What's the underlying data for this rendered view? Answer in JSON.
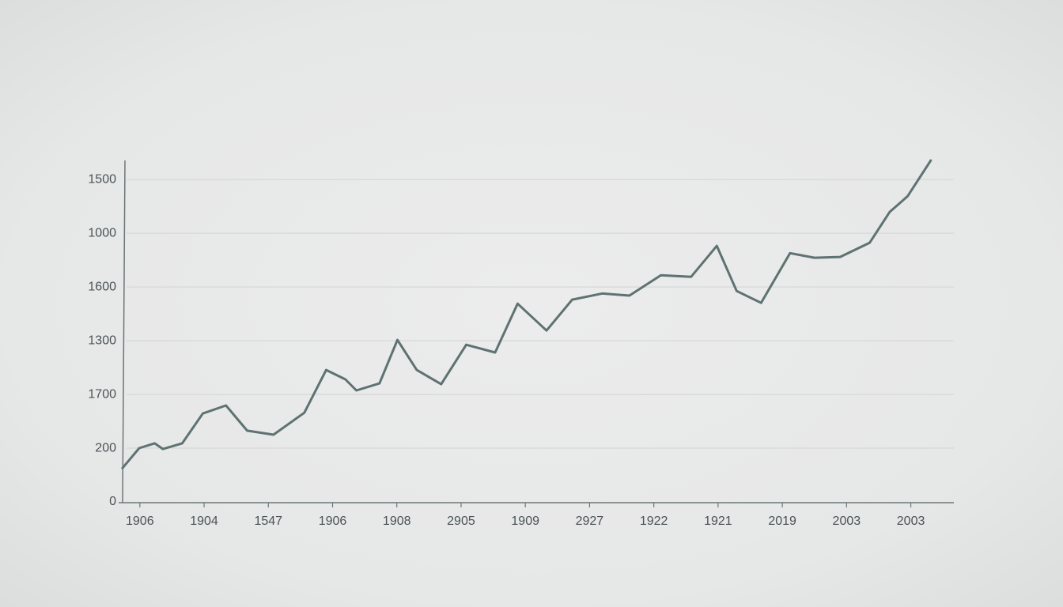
{
  "chart_data": {
    "type": "line",
    "x": [
      -0.27,
      -0.01,
      0.23,
      0.36,
      0.66,
      0.98,
      1.34,
      1.67,
      2.08,
      2.56,
      2.9,
      3.2,
      3.37,
      3.73,
      4.01,
      4.31,
      4.69,
      5.08,
      5.53,
      5.88,
      6.33,
      6.73,
      7.2,
      7.62,
      8.11,
      8.58,
      8.98,
      9.29,
      9.67,
      10.12,
      10.5,
      10.9,
      11.36,
      11.67,
      11.95,
      12.31
    ],
    "series": [
      {
        "color": "#5f7272",
        "values": [
          126,
          200,
          218,
          197,
          218,
          329,
          359,
          265,
          250,
          332,
          491,
          456,
          415,
          441,
          603,
          491,
          438,
          585,
          556,
          738,
          638,
          753,
          776,
          768,
          844,
          838,
          953,
          785,
          741,
          926,
          909,
          912,
          965,
          1079,
          1138,
          1271
        ]
      }
    ],
    "xlim": [
      -0.33,
      12.67
    ],
    "xticks": [
      {
        "value": 0,
        "label": "1906"
      },
      {
        "value": 1,
        "label": "1904"
      },
      {
        "value": 2,
        "label": "1547"
      },
      {
        "value": 3,
        "label": "1906"
      },
      {
        "value": 4,
        "label": "1908"
      },
      {
        "value": 5,
        "label": "2905"
      },
      {
        "value": 6,
        "label": "1909"
      },
      {
        "value": 7,
        "label": "2927"
      },
      {
        "value": 8,
        "label": "1922"
      },
      {
        "value": 9,
        "label": "1921"
      },
      {
        "value": 10,
        "label": "2019"
      },
      {
        "value": 11,
        "label": "2003"
      },
      {
        "value": 12,
        "label": "2003"
      }
    ],
    "ylim": [
      0,
      1280
    ],
    "yticks": [
      0,
      200,
      {
        "value": 400,
        "label": "1700"
      },
      {
        "value": 600,
        "label": "1300"
      },
      {
        "value": 800,
        "label": "1600"
      },
      1000,
      {
        "value": 1200,
        "label": "1500"
      }
    ],
    "grid": true
  }
}
